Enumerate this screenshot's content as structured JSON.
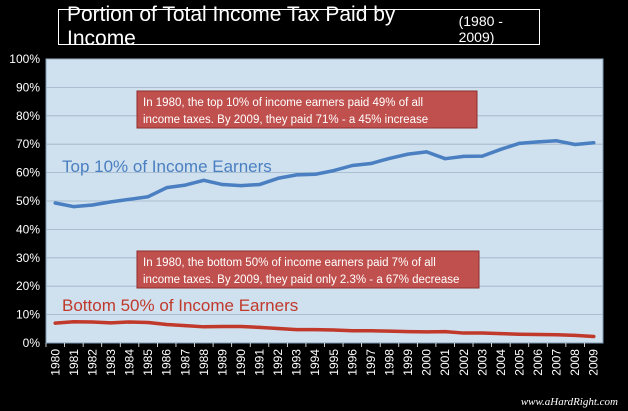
{
  "title": "Portion of Total Income Tax Paid by Income",
  "subtitle": "(1980 - 2009)",
  "credit": "www.aHardRight.com",
  "colors": {
    "background": "#000000",
    "plot": "#cfe0ee",
    "top_series": "#4a7fc1",
    "bottom_series": "#c0392b",
    "note_box": "#c0504d",
    "grid": "#9fb4c8"
  },
  "chart_data": {
    "type": "line",
    "title": "Portion of Total Income Tax Paid by Income",
    "subtitle": "(1980 - 2009)",
    "xlabel": "",
    "ylabel": "",
    "ylim": [
      0,
      100
    ],
    "ytick_labels": [
      "0%",
      "10%",
      "20%",
      "30%",
      "40%",
      "50%",
      "60%",
      "70%",
      "80%",
      "90%",
      "100%"
    ],
    "grid": true,
    "categories": [
      "1980",
      "1981",
      "1982",
      "1983",
      "1984",
      "1985",
      "1986",
      "1987",
      "1988",
      "1989",
      "1990",
      "1991",
      "1992",
      "1993",
      "1994",
      "1995",
      "1996",
      "1997",
      "1998",
      "1999",
      "2000",
      "2001",
      "2002",
      "2003",
      "2004",
      "2005",
      "2006",
      "2007",
      "2008",
      "2009"
    ],
    "series": [
      {
        "name": "Top 10% of Income Earners",
        "values": [
          49.3,
          48.0,
          48.6,
          49.7,
          50.6,
          51.5,
          54.7,
          55.6,
          57.3,
          55.8,
          55.4,
          55.8,
          58.0,
          59.2,
          59.4,
          60.7,
          62.5,
          63.2,
          65.0,
          66.5,
          67.3,
          64.9,
          65.7,
          65.8,
          68.2,
          70.3,
          70.8,
          71.2,
          69.9,
          70.5
        ]
      },
      {
        "name": "Bottom 50% of Income Earners",
        "values": [
          7.0,
          7.5,
          7.4,
          7.1,
          7.4,
          7.2,
          6.5,
          6.1,
          5.7,
          5.8,
          5.8,
          5.5,
          5.1,
          4.7,
          4.7,
          4.6,
          4.3,
          4.3,
          4.2,
          4.0,
          3.9,
          4.0,
          3.5,
          3.5,
          3.3,
          3.1,
          3.0,
          2.9,
          2.7,
          2.3
        ]
      }
    ],
    "annotations": [
      {
        "text": "In 1980, the top 10% of income earners paid 49% of all income taxes. By 2009, they paid 71% - a 45% increase"
      },
      {
        "text": "In 1980, the bottom 50% of income earners paid 7% of all income taxes. By 2009, they paid only 2.3% - a 67% decrease"
      }
    ]
  }
}
